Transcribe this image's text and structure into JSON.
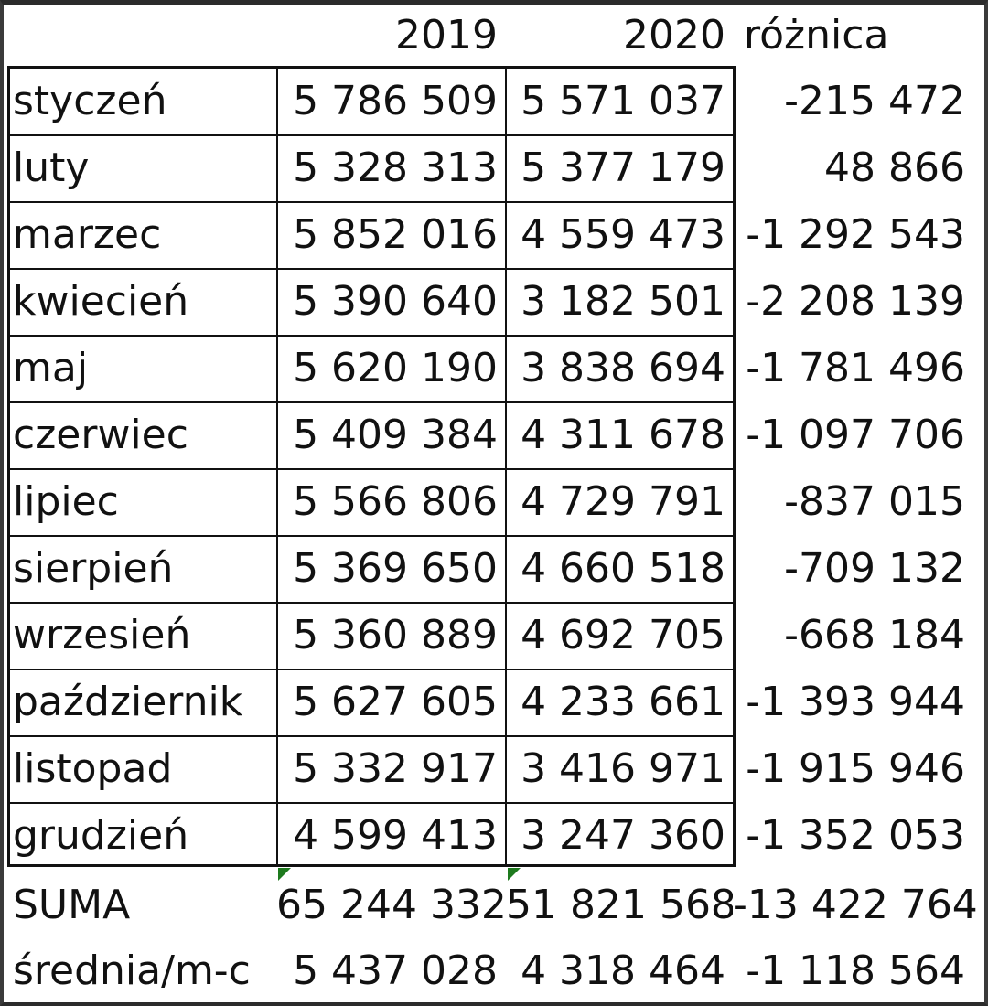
{
  "header": {
    "y2019": "2019",
    "y2020": "2020",
    "diff": "różnica"
  },
  "rows": [
    {
      "month": "styczeń",
      "v2019": "5 786 509",
      "v2020": "5 571 037",
      "diff": "-215 472"
    },
    {
      "month": "luty",
      "v2019": "5 328 313",
      "v2020": "5 377 179",
      "diff": "48 866"
    },
    {
      "month": "marzec",
      "v2019": "5 852 016",
      "v2020": "4 559 473",
      "diff": "-1 292 543"
    },
    {
      "month": "kwiecień",
      "v2019": "5 390 640",
      "v2020": "3 182 501",
      "diff": "-2 208 139"
    },
    {
      "month": "maj",
      "v2019": "5 620 190",
      "v2020": "3 838 694",
      "diff": "-1 781 496"
    },
    {
      "month": "czerwiec",
      "v2019": "5 409 384",
      "v2020": "4 311 678",
      "diff": "-1 097 706"
    },
    {
      "month": "lipiec",
      "v2019": "5 566 806",
      "v2020": "4 729 791",
      "diff": "-837 015"
    },
    {
      "month": "sierpień",
      "v2019": "5 369 650",
      "v2020": "4 660 518",
      "diff": "-709 132"
    },
    {
      "month": "wrzesień",
      "v2019": "5 360 889",
      "v2020": "4 692 705",
      "diff": "-668 184"
    },
    {
      "month": "październik",
      "v2019": "5 627 605",
      "v2020": "4 233 661",
      "diff": "-1 393 944"
    },
    {
      "month": "listopad",
      "v2019": "5 332 917",
      "v2020": "3 416 971",
      "diff": "-1 915 946"
    },
    {
      "month": "grudzień",
      "v2019": "4 599 413",
      "v2020": "3 247 360",
      "diff": "-1 352 053"
    }
  ],
  "summary": [
    {
      "label": "SUMA",
      "v2019": "65 244 332",
      "v2020": "51 821 568",
      "diff": "-13 422 764"
    },
    {
      "label": "średnia/m-c",
      "v2019": "5 437 028",
      "v2020": "4 318 464",
      "diff": "-1 118 564"
    }
  ],
  "colors": {
    "grid": "#111111",
    "error_indicator": "#1e7a1e"
  }
}
